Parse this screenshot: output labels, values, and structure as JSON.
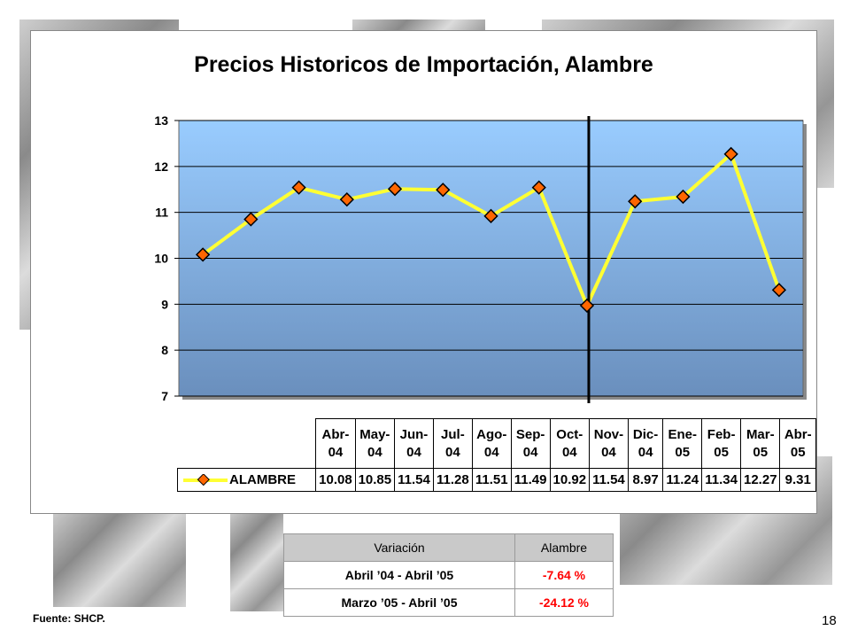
{
  "chart_data": {
    "type": "line",
    "title": "Precios Historicos de Importación, Alambre",
    "categories": [
      "Abr-\n04",
      "May-\n04",
      "Jun-\n04",
      "Jul-\n04",
      "Ago-\n04",
      "Sep-\n04",
      "Oct-\n04",
      "Nov-\n04",
      "Dic-\n04",
      "Ene-\n05",
      "Feb-\n05",
      "Mar-\n05",
      "Abr-\n05"
    ],
    "series": [
      {
        "name": "ALAMBRE",
        "values": [
          10.08,
          10.85,
          11.54,
          11.28,
          11.51,
          11.49,
          10.92,
          11.54,
          8.97,
          11.24,
          11.34,
          12.27,
          9.31
        ],
        "value_labels": [
          "10.08",
          "10.85",
          "11.54",
          "11.28",
          "11.51",
          "11.49",
          "10.92",
          "11.54",
          "8.97",
          "11.24",
          "11.34",
          "12.27",
          "9.31"
        ]
      }
    ],
    "ylim": [
      7,
      13
    ],
    "yticks": [
      "13",
      "12",
      "11",
      "10",
      "9",
      "8",
      "7"
    ],
    "grid": true,
    "divider_between": [
      "Dic-\n04",
      "Ene-\n05"
    ],
    "colors": {
      "line": "#ffff33",
      "marker_fill": "#ff6600",
      "marker_edge": "#000000",
      "plot_top": "#99ccff",
      "plot_bottom": "#6a8fbd"
    }
  },
  "variation_table": {
    "headers": [
      "Variación",
      "Alambre"
    ],
    "rows": [
      {
        "period": "Abril ’04 - Abril ’05",
        "value": "-7.64 %"
      },
      {
        "period": "Marzo ’05 - Abril ’05",
        "value": "-24.12 %"
      }
    ]
  },
  "source": "Fuente: SHCP.",
  "page_number": "18"
}
